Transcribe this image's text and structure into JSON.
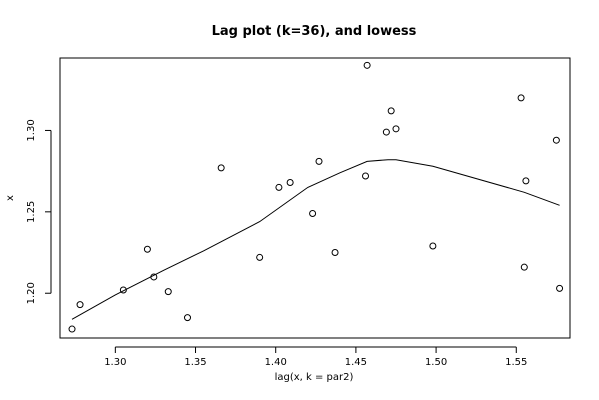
{
  "chart_data": {
    "type": "scatter",
    "title": "Lag plot (k=36), and lowess",
    "xlabel": "lag(x, k = par2)",
    "ylabel": "x",
    "xlim": [
      1.2655,
      1.5835
    ],
    "ylim": [
      1.1725,
      1.3445
    ],
    "x_ticks": [
      "1.30",
      "1.35",
      "1.40",
      "1.45",
      "1.50",
      "1.55"
    ],
    "y_ticks": [
      "1.20",
      "1.25",
      "1.30"
    ],
    "grid": false,
    "points": [
      {
        "x": 1.273,
        "y": 1.178
      },
      {
        "x": 1.278,
        "y": 1.193
      },
      {
        "x": 1.305,
        "y": 1.202
      },
      {
        "x": 1.32,
        "y": 1.227
      },
      {
        "x": 1.324,
        "y": 1.21
      },
      {
        "x": 1.333,
        "y": 1.201
      },
      {
        "x": 1.345,
        "y": 1.185
      },
      {
        "x": 1.366,
        "y": 1.277
      },
      {
        "x": 1.39,
        "y": 1.222
      },
      {
        "x": 1.402,
        "y": 1.265
      },
      {
        "x": 1.409,
        "y": 1.268
      },
      {
        "x": 1.423,
        "y": 1.249
      },
      {
        "x": 1.427,
        "y": 1.281
      },
      {
        "x": 1.437,
        "y": 1.225
      },
      {
        "x": 1.456,
        "y": 1.272
      },
      {
        "x": 1.457,
        "y": 1.34
      },
      {
        "x": 1.469,
        "y": 1.299
      },
      {
        "x": 1.472,
        "y": 1.312
      },
      {
        "x": 1.475,
        "y": 1.301
      },
      {
        "x": 1.498,
        "y": 1.229
      },
      {
        "x": 1.553,
        "y": 1.32
      },
      {
        "x": 1.555,
        "y": 1.216
      },
      {
        "x": 1.556,
        "y": 1.269
      },
      {
        "x": 1.575,
        "y": 1.294
      },
      {
        "x": 1.577,
        "y": 1.203
      }
    ],
    "lowess": [
      {
        "x": 1.273,
        "y": 1.184
      },
      {
        "x": 1.3,
        "y": 1.199
      },
      {
        "x": 1.33,
        "y": 1.214
      },
      {
        "x": 1.355,
        "y": 1.226
      },
      {
        "x": 1.39,
        "y": 1.244
      },
      {
        "x": 1.42,
        "y": 1.265
      },
      {
        "x": 1.44,
        "y": 1.274
      },
      {
        "x": 1.457,
        "y": 1.281
      },
      {
        "x": 1.47,
        "y": 1.282
      },
      {
        "x": 1.475,
        "y": 1.282
      },
      {
        "x": 1.498,
        "y": 1.278
      },
      {
        "x": 1.555,
        "y": 1.262
      },
      {
        "x": 1.577,
        "y": 1.254
      }
    ]
  }
}
